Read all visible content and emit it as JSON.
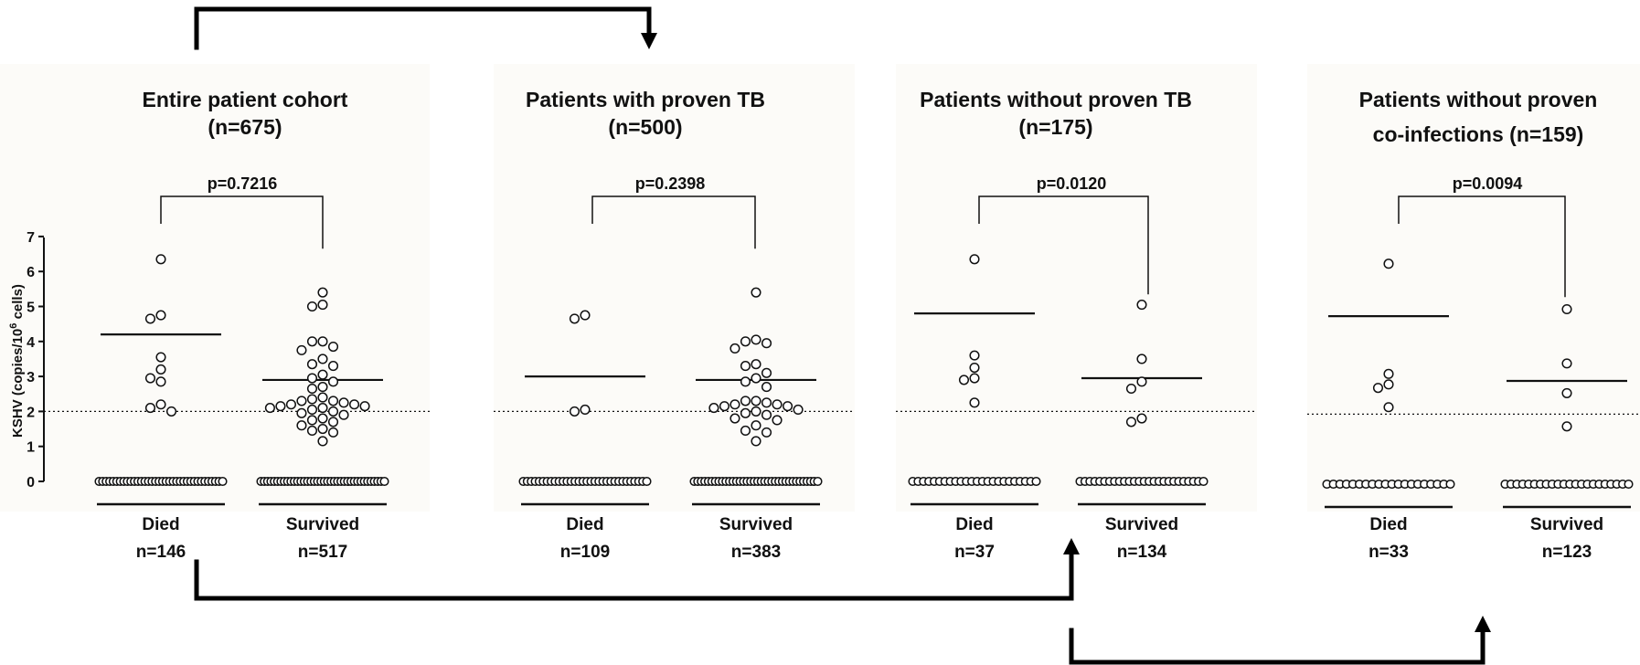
{
  "chart_data": [
    {
      "type": "scatter",
      "title": "Entire patient cohort",
      "subtitle": "(n=675)",
      "ylabel": "KSHV (copies/10",
      "ylabel_sup": "6",
      "ylabel_end": " cells)",
      "ylim": [
        0,
        7
      ],
      "yticks": [
        "0",
        "1",
        "2",
        "3",
        "4",
        "5",
        "6",
        "7"
      ],
      "threshold": 2,
      "p_value": "p=0.7216",
      "groups": [
        {
          "name": "Died",
          "n": "n=146",
          "mean": 4.2,
          "zero_count": 36,
          "values": [
            6.35,
            4.75,
            4.65,
            3.55,
            3.2,
            2.95,
            2.85,
            2.2,
            2.1,
            2.0
          ]
        },
        {
          "name": "Survived",
          "n": "n=517",
          "mean": 2.9,
          "zero_count": 38,
          "values": [
            5.4,
            5.05,
            5.0,
            4.0,
            4.0,
            3.85,
            3.75,
            3.5,
            3.35,
            3.3,
            3.05,
            2.95,
            2.85,
            2.7,
            2.65,
            2.4,
            2.35,
            2.3,
            2.3,
            2.25,
            2.2,
            2.2,
            2.15,
            2.15,
            2.1,
            2.1,
            2.05,
            2.0,
            1.95,
            1.9,
            1.8,
            1.75,
            1.7,
            1.6,
            1.5,
            1.45,
            1.4,
            1.15
          ]
        }
      ]
    },
    {
      "type": "scatter",
      "title": "Patients with proven TB",
      "subtitle": "(n=500)",
      "ylim": [
        0,
        7
      ],
      "threshold": 2,
      "p_value": "p=0.2398",
      "groups": [
        {
          "name": "Died",
          "n": "n=109",
          "mean": 3.0,
          "zero_count": 32,
          "values": [
            4.75,
            4.65,
            2.05,
            2.0
          ]
        },
        {
          "name": "Survived",
          "n": "n=383",
          "mean": 2.9,
          "zero_count": 36,
          "values": [
            5.4,
            4.05,
            4.0,
            3.95,
            3.8,
            3.35,
            3.3,
            3.1,
            2.95,
            2.85,
            2.7,
            2.3,
            2.3,
            2.25,
            2.2,
            2.2,
            2.15,
            2.15,
            2.1,
            2.05,
            2.0,
            1.95,
            1.9,
            1.8,
            1.75,
            1.6,
            1.45,
            1.4,
            1.15
          ]
        }
      ]
    },
    {
      "type": "scatter",
      "title": "Patients without proven TB",
      "subtitle": "(n=175)",
      "ylim": [
        0,
        7
      ],
      "threshold": 2,
      "p_value": "p=0.0120",
      "groups": [
        {
          "name": "Died",
          "n": "n=37",
          "mean": 4.8,
          "zero_count": 24,
          "values": [
            6.35,
            3.6,
            3.25,
            2.95,
            2.9,
            2.25
          ]
        },
        {
          "name": "Survived",
          "n": "n=134",
          "mean": 2.95,
          "zero_count": 26,
          "values": [
            5.05,
            3.5,
            2.85,
            2.65,
            1.8,
            1.7
          ]
        }
      ]
    },
    {
      "type": "scatter",
      "title": "Patients without proven",
      "subtitle": "co-infections (n=159)",
      "ylim": [
        0,
        7
      ],
      "threshold": 2,
      "p_value": "p=0.0094",
      "groups": [
        {
          "name": "Died",
          "n": "n=33",
          "mean": 4.8,
          "zero_count": 20,
          "values": [
            6.3,
            3.15,
            2.85,
            2.75,
            2.2
          ]
        },
        {
          "name": "Survived",
          "n": "n=123",
          "mean": 2.95,
          "zero_count": 22,
          "values": [
            5.0,
            3.45,
            2.6,
            1.65
          ]
        }
      ]
    }
  ],
  "colors": {
    "ink": "#111111",
    "panel_bg": "#fcfbf8",
    "marker_fill": "#ffffff"
  }
}
